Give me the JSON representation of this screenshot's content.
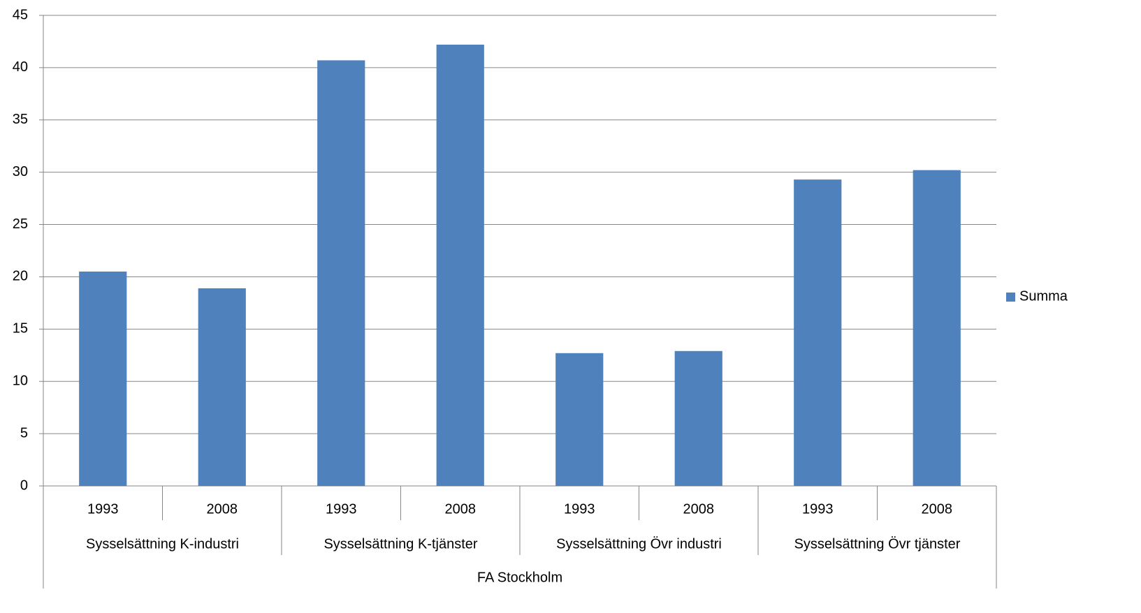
{
  "chart_data": {
    "type": "bar",
    "categories": [
      "1993",
      "2008",
      "1993",
      "2008",
      "1993",
      "2008",
      "1993",
      "2008"
    ],
    "groups": [
      "Sysselsättning K-industri",
      "Sysselsättning K-tjänster",
      "Sysselsättning Övr industri",
      "Sysselsättning Övr tjänster"
    ],
    "supergroup": "FA Stockholm",
    "series": [
      {
        "name": "Summa",
        "color": "#4f81bd",
        "values": [
          20.5,
          18.9,
          40.7,
          42.2,
          12.7,
          12.9,
          29.3,
          30.2
        ]
      }
    ],
    "ylim": [
      0,
      45
    ],
    "yticks": [
      0,
      5,
      10,
      15,
      20,
      25,
      30,
      35,
      40,
      45
    ],
    "grid": true,
    "legend": "right"
  }
}
